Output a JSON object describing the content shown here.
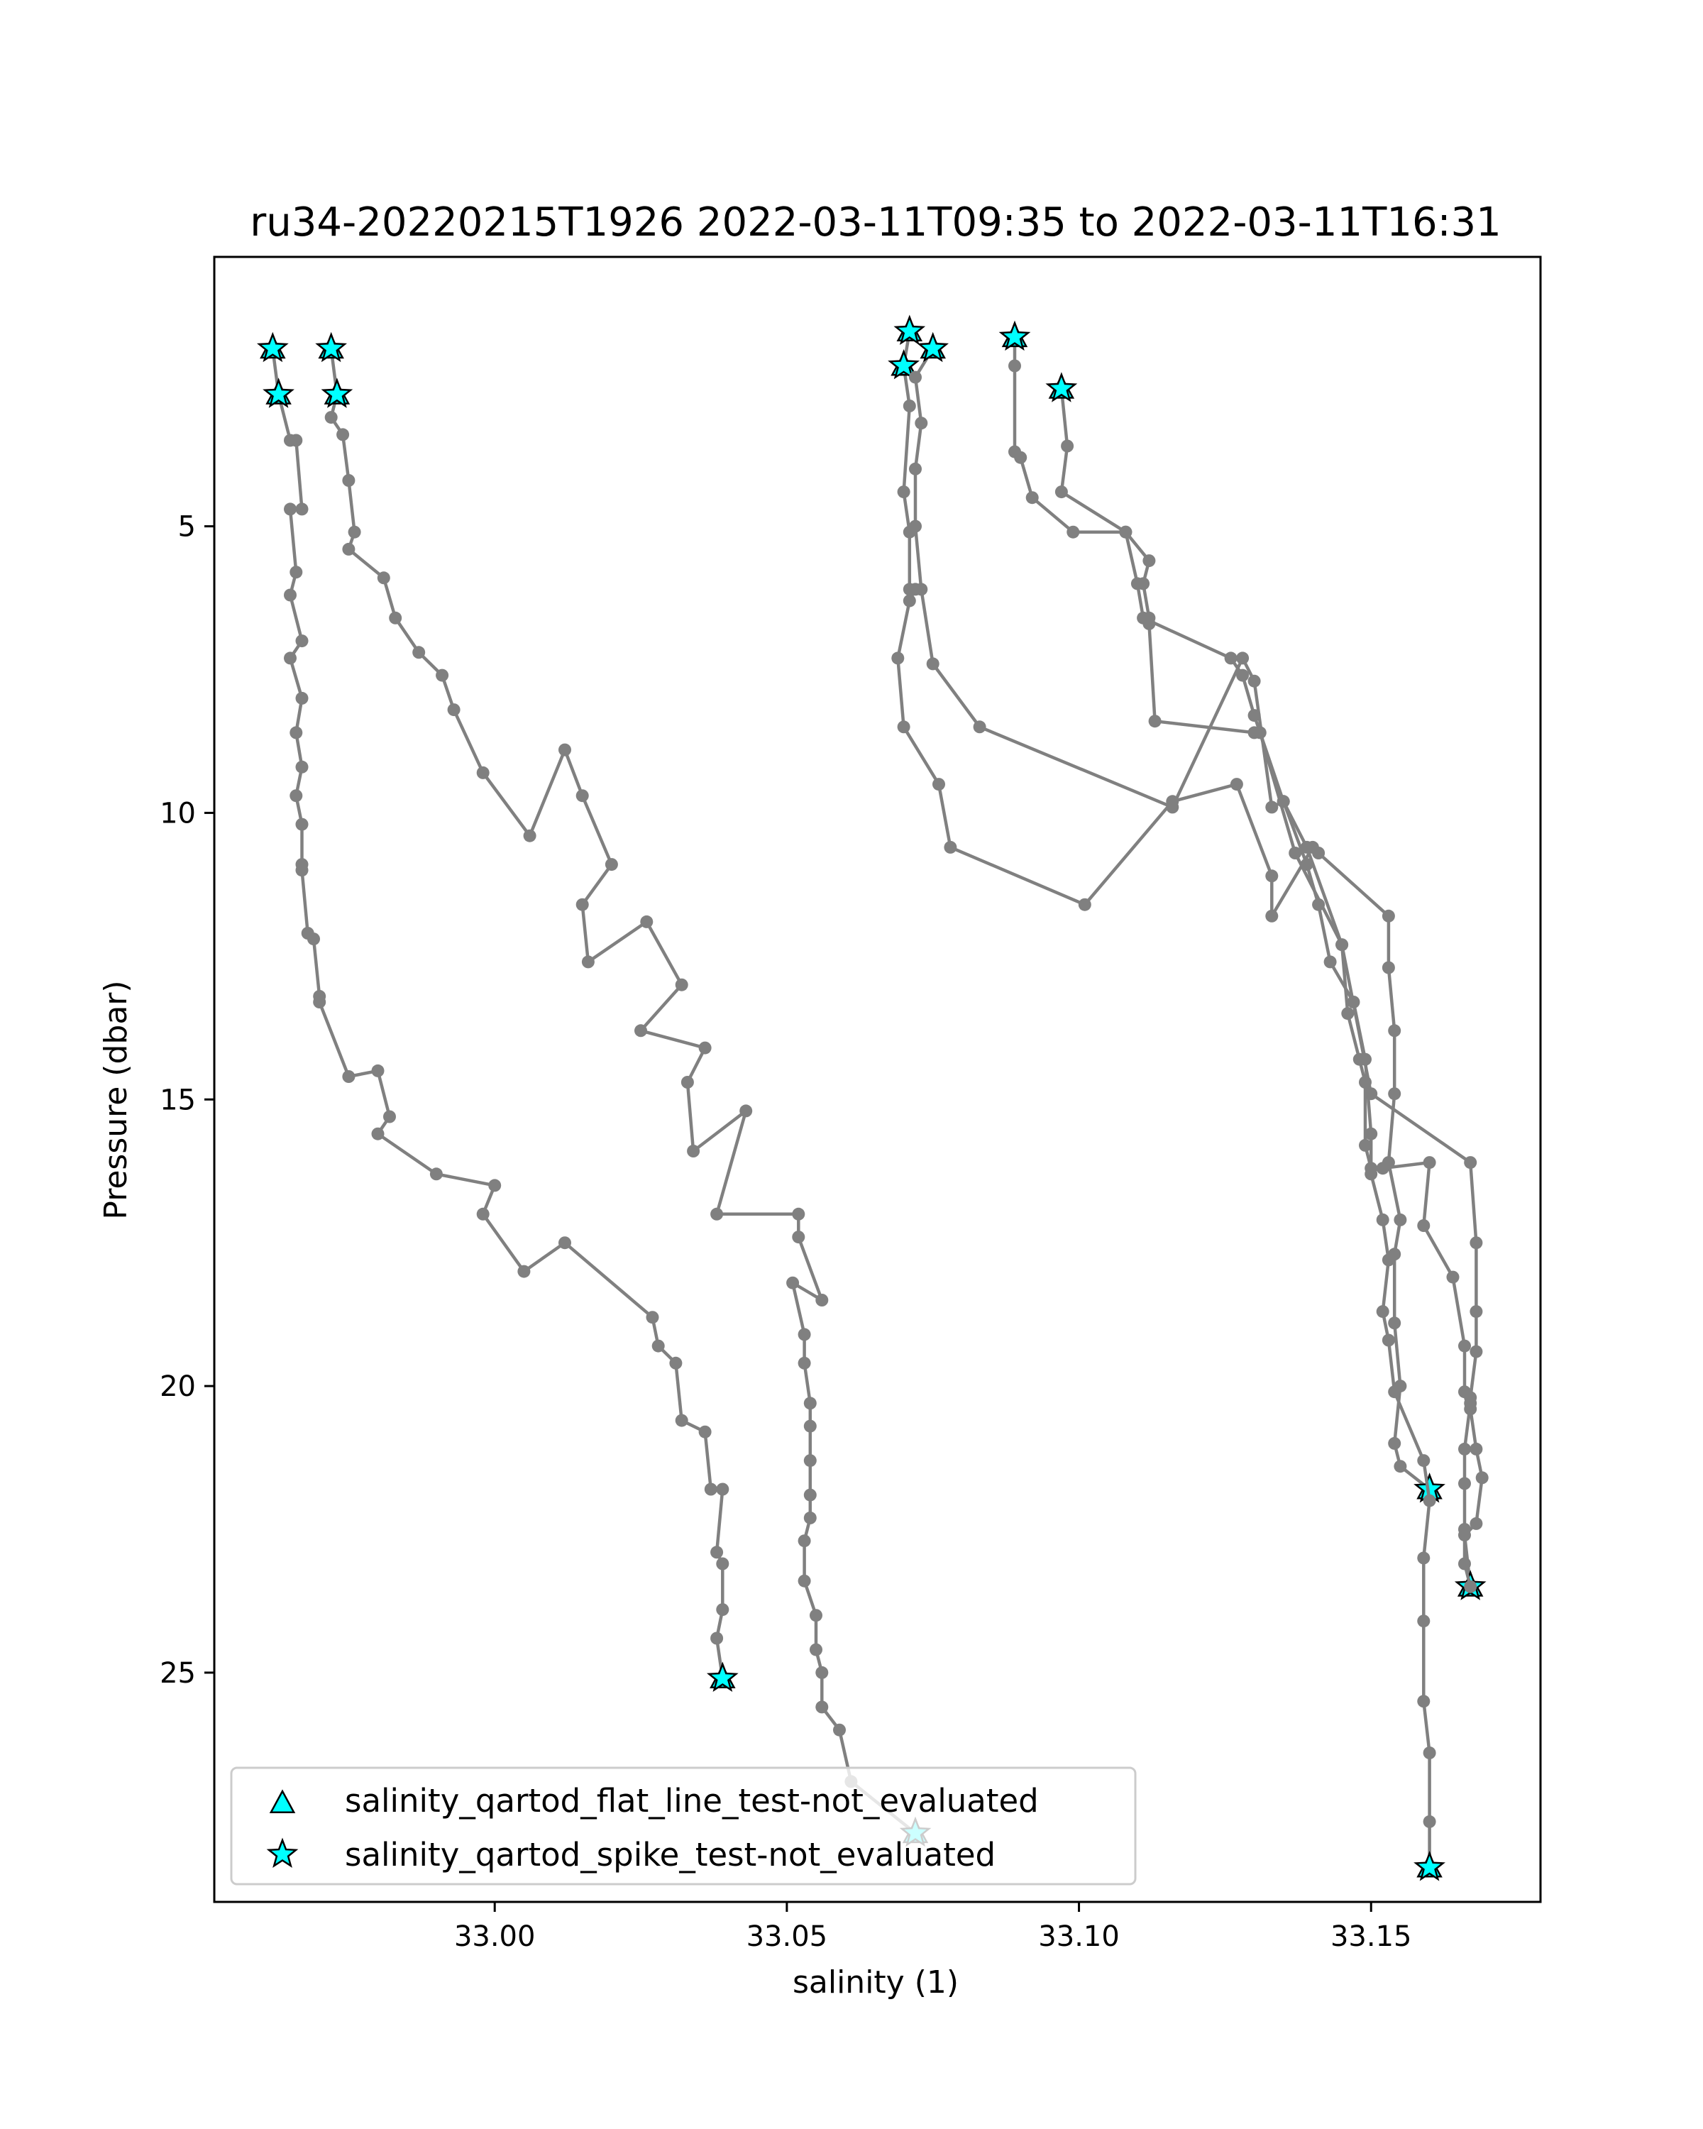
{
  "chart_data": {
    "type": "line",
    "title": "ru34-20220215T1926 2022-03-11T09:35 to 2022-03-11T16:31",
    "xlabel": "salinity (1)",
    "ylabel": "Pressure (dbar)",
    "xlim": [
      32.952,
      33.179
    ],
    "ylim": [
      29.0,
      0.3
    ],
    "y_inverted": true,
    "grid": false,
    "xticks": [
      33.0,
      33.05,
      33.1,
      33.15
    ],
    "xtick_labels": [
      "33.00",
      "33.05",
      "33.10",
      "33.15"
    ],
    "yticks": [
      5,
      10,
      15,
      20,
      25
    ],
    "ytick_labels": [
      "5",
      "10",
      "15",
      "20",
      "25"
    ],
    "line_color": "#808080",
    "marker_color": "#00ffff",
    "series": [
      {
        "points": [
          [
            32.962,
            1.9
          ],
          [
            32.963,
            2.7
          ],
          [
            32.965,
            3.5
          ],
          [
            32.966,
            3.5
          ],
          [
            32.967,
            4.7
          ],
          [
            32.965,
            4.7
          ],
          [
            32.966,
            5.8
          ],
          [
            32.965,
            6.2
          ],
          [
            32.967,
            7.0
          ],
          [
            32.965,
            7.3
          ],
          [
            32.967,
            8.0
          ],
          [
            32.966,
            8.6
          ],
          [
            32.967,
            9.2
          ],
          [
            32.966,
            9.7
          ],
          [
            32.967,
            10.2
          ],
          [
            32.967,
            10.9
          ],
          [
            32.967,
            11.0
          ],
          [
            32.968,
            12.1
          ],
          [
            32.969,
            12.2
          ],
          [
            32.97,
            13.2
          ],
          [
            32.97,
            13.3
          ],
          [
            32.975,
            14.6
          ],
          [
            32.98,
            14.5
          ],
          [
            32.982,
            15.3
          ],
          [
            32.98,
            15.6
          ],
          [
            32.99,
            16.3
          ],
          [
            33.0,
            16.5
          ],
          [
            32.998,
            17.0
          ],
          [
            33.005,
            18.0
          ],
          [
            33.012,
            17.5
          ],
          [
            33.027,
            18.8
          ],
          [
            33.028,
            19.3
          ],
          [
            33.031,
            19.6
          ],
          [
            33.032,
            20.6
          ],
          [
            33.036,
            20.8
          ],
          [
            33.037,
            21.8
          ],
          [
            33.039,
            21.8
          ],
          [
            33.038,
            22.9
          ],
          [
            33.039,
            23.1
          ],
          [
            33.039,
            23.9
          ],
          [
            33.038,
            24.4
          ],
          [
            33.039,
            25.1
          ]
        ],
        "flags": [
          {
            "i": 0,
            "marker": "star"
          },
          {
            "i": 1,
            "marker": "star"
          },
          {
            "i": 41,
            "marker": "star"
          }
        ]
      },
      {
        "points": [
          [
            32.972,
            1.9
          ],
          [
            32.973,
            2.7
          ],
          [
            32.972,
            3.1
          ],
          [
            32.974,
            3.4
          ],
          [
            32.975,
            4.2
          ],
          [
            32.976,
            5.1
          ],
          [
            32.975,
            5.4
          ],
          [
            32.981,
            5.9
          ],
          [
            32.983,
            6.6
          ],
          [
            32.987,
            7.2
          ],
          [
            32.991,
            7.6
          ],
          [
            32.993,
            8.2
          ],
          [
            32.998,
            9.3
          ],
          [
            33.006,
            10.4
          ],
          [
            33.012,
            8.9
          ],
          [
            33.015,
            9.7
          ],
          [
            33.02,
            10.9
          ],
          [
            33.015,
            11.6
          ],
          [
            33.016,
            12.6
          ],
          [
            33.026,
            11.9
          ],
          [
            33.032,
            13.0
          ],
          [
            33.025,
            13.8
          ],
          [
            33.036,
            14.1
          ],
          [
            33.033,
            14.7
          ],
          [
            33.034,
            15.9
          ],
          [
            33.043,
            15.2
          ],
          [
            33.038,
            17.0
          ],
          [
            33.052,
            17.0
          ],
          [
            33.052,
            17.4
          ],
          [
            33.056,
            18.5
          ],
          [
            33.051,
            18.2
          ],
          [
            33.053,
            19.1
          ],
          [
            33.053,
            19.6
          ],
          [
            33.054,
            20.3
          ],
          [
            33.054,
            20.7
          ],
          [
            33.054,
            21.3
          ],
          [
            33.054,
            21.9
          ],
          [
            33.054,
            22.3
          ],
          [
            33.053,
            22.7
          ],
          [
            33.053,
            23.4
          ],
          [
            33.055,
            24.0
          ],
          [
            33.055,
            24.6
          ],
          [
            33.056,
            25.0
          ],
          [
            33.056,
            25.6
          ],
          [
            33.059,
            26.0
          ],
          [
            33.061,
            26.9
          ],
          [
            33.072,
            27.8
          ]
        ],
        "flags": [
          {
            "i": 0,
            "marker": "star"
          },
          {
            "i": 1,
            "marker": "star"
          },
          {
            "i": 46,
            "marker": "star"
          }
        ]
      },
      {
        "points": [
          [
            33.071,
            1.6
          ],
          [
            33.07,
            2.2
          ],
          [
            33.071,
            2.9
          ],
          [
            33.07,
            4.4
          ],
          [
            33.071,
            5.1
          ],
          [
            33.071,
            6.1
          ],
          [
            33.072,
            6.1
          ],
          [
            33.071,
            6.3
          ],
          [
            33.069,
            7.3
          ],
          [
            33.07,
            8.5
          ],
          [
            33.076,
            9.5
          ],
          [
            33.078,
            10.6
          ],
          [
            33.101,
            11.6
          ],
          [
            33.116,
            9.8
          ],
          [
            33.127,
            9.5
          ],
          [
            33.133,
            11.1
          ],
          [
            33.133,
            11.8
          ],
          [
            33.14,
            10.6
          ],
          [
            33.141,
            10.7
          ],
          [
            33.153,
            11.8
          ],
          [
            33.153,
            12.7
          ],
          [
            33.154,
            13.8
          ],
          [
            33.154,
            14.9
          ],
          [
            33.153,
            16.1
          ],
          [
            33.155,
            17.1
          ],
          [
            33.154,
            17.7
          ],
          [
            33.154,
            18.9
          ],
          [
            33.155,
            20.0
          ],
          [
            33.154,
            21.0
          ],
          [
            33.155,
            21.4
          ],
          [
            33.16,
            21.8
          ]
        ],
        "flags": [
          {
            "i": 0,
            "marker": "star"
          },
          {
            "i": 1,
            "marker": "star"
          },
          {
            "i": 30,
            "marker": "star"
          }
        ]
      },
      {
        "points": [
          [
            33.075,
            1.9
          ],
          [
            33.072,
            2.4
          ],
          [
            33.073,
            3.2
          ],
          [
            33.072,
            4.0
          ],
          [
            33.072,
            5.0
          ],
          [
            33.073,
            6.1
          ],
          [
            33.075,
            7.4
          ],
          [
            33.083,
            8.5
          ],
          [
            33.116,
            9.9
          ],
          [
            33.128,
            7.3
          ],
          [
            33.13,
            7.7
          ],
          [
            33.133,
            9.9
          ],
          [
            33.135,
            9.8
          ],
          [
            33.139,
            10.6
          ],
          [
            33.145,
            12.3
          ],
          [
            33.15,
            14.9
          ],
          [
            33.167,
            16.1
          ],
          [
            33.168,
            17.5
          ],
          [
            33.168,
            18.7
          ],
          [
            33.168,
            19.4
          ],
          [
            33.167,
            20.2
          ],
          [
            33.167,
            20.4
          ],
          [
            33.168,
            21.1
          ],
          [
            33.169,
            21.6
          ],
          [
            33.168,
            22.4
          ],
          [
            33.166,
            22.6
          ],
          [
            33.167,
            23.5
          ]
        ],
        "flags": [
          {
            "i": 0,
            "marker": "star"
          },
          {
            "i": 26,
            "marker": "star"
          }
        ]
      },
      {
        "points": [
          [
            33.089,
            1.7
          ],
          [
            33.089,
            2.2
          ],
          [
            33.089,
            3.7
          ],
          [
            33.09,
            3.8
          ],
          [
            33.092,
            4.5
          ],
          [
            33.099,
            5.1
          ],
          [
            33.108,
            5.1
          ],
          [
            33.112,
            5.6
          ],
          [
            33.111,
            6.0
          ],
          [
            33.112,
            6.6
          ],
          [
            33.112,
            6.7
          ],
          [
            33.113,
            8.4
          ],
          [
            33.13,
            8.6
          ],
          [
            33.131,
            8.6
          ],
          [
            33.137,
            10.7
          ],
          [
            33.145,
            12.3
          ],
          [
            33.146,
            13.5
          ],
          [
            33.148,
            14.3
          ],
          [
            33.149,
            14.7
          ],
          [
            33.149,
            15.8
          ],
          [
            33.15,
            16.2
          ],
          [
            33.152,
            16.2
          ],
          [
            33.16,
            16.1
          ],
          [
            33.159,
            17.2
          ],
          [
            33.164,
            18.1
          ],
          [
            33.166,
            19.3
          ],
          [
            33.166,
            20.1
          ],
          [
            33.167,
            20.3
          ],
          [
            33.166,
            21.1
          ],
          [
            33.166,
            21.7
          ],
          [
            33.166,
            22.5
          ],
          [
            33.166,
            23.1
          ],
          [
            33.167,
            23.5
          ]
        ],
        "flags": [
          {
            "i": 0,
            "marker": "star"
          }
        ]
      },
      {
        "points": [
          [
            33.097,
            2.6
          ],
          [
            33.098,
            3.6
          ],
          [
            33.097,
            4.4
          ],
          [
            33.108,
            5.1
          ],
          [
            33.11,
            6.0
          ],
          [
            33.111,
            6.6
          ],
          [
            33.126,
            7.3
          ],
          [
            33.128,
            7.6
          ],
          [
            33.13,
            8.3
          ],
          [
            33.135,
            9.8
          ],
          [
            33.139,
            10.9
          ],
          [
            33.141,
            11.6
          ],
          [
            33.143,
            12.6
          ],
          [
            33.147,
            13.3
          ],
          [
            33.149,
            14.3
          ],
          [
            33.15,
            15.6
          ],
          [
            33.15,
            16.3
          ],
          [
            33.152,
            17.1
          ],
          [
            33.153,
            17.8
          ],
          [
            33.152,
            18.7
          ],
          [
            33.153,
            19.2
          ],
          [
            33.154,
            20.1
          ],
          [
            33.159,
            21.3
          ],
          [
            33.16,
            22.0
          ],
          [
            33.159,
            23.0
          ],
          [
            33.159,
            24.1
          ],
          [
            33.159,
            25.5
          ],
          [
            33.16,
            26.4
          ],
          [
            33.16,
            27.6
          ],
          [
            33.16,
            28.4
          ]
        ],
        "flags": [
          {
            "i": 0,
            "marker": "star"
          },
          {
            "i": 29,
            "marker": "star"
          }
        ]
      }
    ],
    "legend": {
      "location": "lower-left",
      "entries": [
        {
          "label": "salinity_qartod_flat_line_test-not_evaluated",
          "marker": "triangle",
          "color": "#00ffff"
        },
        {
          "label": "salinity_qartod_spike_test-not_evaluated",
          "marker": "star",
          "color": "#00ffff"
        }
      ]
    }
  }
}
